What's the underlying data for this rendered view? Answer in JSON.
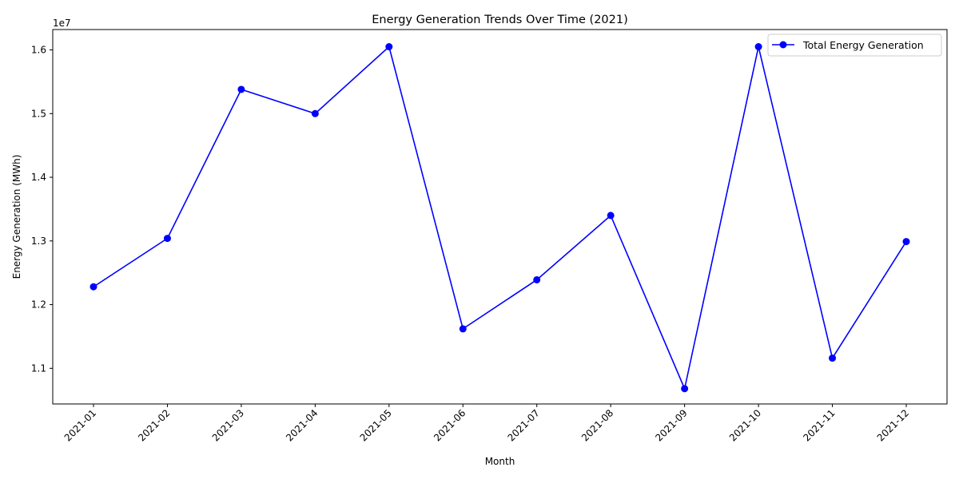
{
  "chart_data": {
    "type": "line",
    "title": "Energy Generation Trends Over Time (2021)",
    "xlabel": "Month",
    "ylabel": "Energy Generation (MWh)",
    "y_offset_label": "1e7",
    "categories": [
      "2021-01",
      "2021-02",
      "2021-03",
      "2021-04",
      "2021-05",
      "2021-06",
      "2021-07",
      "2021-08",
      "2021-09",
      "2021-10",
      "2021-11",
      "2021-12"
    ],
    "series": [
      {
        "name": "Total Energy Generation",
        "color": "#0000ff",
        "marker": "circle",
        "values": [
          12280000,
          13040000,
          15380000,
          15000000,
          16050000,
          11620000,
          12390000,
          13400000,
          10680000,
          16050000,
          11160000,
          12990000
        ]
      }
    ],
    "yticks": [
      1.1,
      1.2,
      1.3,
      1.4,
      1.5,
      1.6
    ],
    "ytick_labels": [
      "1.1",
      "1.2",
      "1.3",
      "1.4",
      "1.5",
      "1.6"
    ],
    "ylim": [
      10440000,
      16320000
    ],
    "grid": false,
    "legend_position": "top-right"
  }
}
